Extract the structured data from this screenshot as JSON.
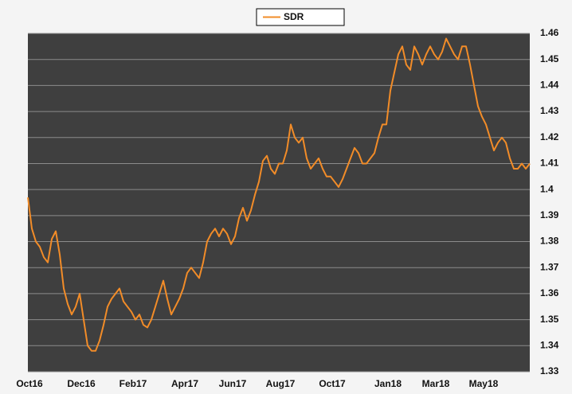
{
  "chart_data": {
    "type": "line",
    "categories": [
      "Oct16",
      null,
      null,
      null,
      null,
      null,
      null,
      null,
      null,
      null,
      null,
      null,
      null,
      "Dec16",
      null,
      null,
      null,
      null,
      null,
      null,
      null,
      null,
      null,
      null,
      null,
      null,
      "Feb17",
      null,
      null,
      null,
      null,
      null,
      null,
      null,
      null,
      null,
      null,
      null,
      null,
      "Apr17",
      null,
      null,
      null,
      null,
      null,
      null,
      null,
      null,
      null,
      null,
      null,
      "Jun17",
      null,
      null,
      null,
      null,
      null,
      null,
      null,
      null,
      null,
      null,
      null,
      "Aug17",
      null,
      null,
      null,
      null,
      null,
      null,
      null,
      null,
      null,
      null,
      null,
      null,
      "Oct17",
      null,
      null,
      null,
      null,
      null,
      null,
      null,
      null,
      null,
      null,
      null,
      null,
      null,
      "Jan18",
      null,
      null,
      null,
      null,
      null,
      null,
      null,
      null,
      null,
      null,
      null,
      "Mar18",
      null,
      null,
      null,
      null,
      null,
      null,
      null,
      null,
      null,
      null,
      null,
      "May18",
      null,
      null,
      null,
      null,
      null,
      null,
      null,
      null,
      null,
      null,
      null,
      null
    ],
    "series": [
      {
        "name": "SDR",
        "color": "#f28c28",
        "values": [
          1.397,
          1.385,
          1.38,
          1.378,
          1.374,
          1.372,
          1.381,
          1.384,
          1.375,
          1.362,
          1.356,
          1.352,
          1.355,
          1.36,
          1.35,
          1.34,
          1.338,
          1.338,
          1.342,
          1.348,
          1.355,
          1.358,
          1.36,
          1.362,
          1.357,
          1.355,
          1.353,
          1.35,
          1.352,
          1.348,
          1.347,
          1.35,
          1.355,
          1.36,
          1.365,
          1.358,
          1.352,
          1.355,
          1.358,
          1.362,
          1.368,
          1.37,
          1.368,
          1.366,
          1.372,
          1.38,
          1.383,
          1.385,
          1.382,
          1.385,
          1.383,
          1.379,
          1.382,
          1.389,
          1.393,
          1.388,
          1.392,
          1.398,
          1.403,
          1.411,
          1.413,
          1.408,
          1.406,
          1.41,
          1.41,
          1.415,
          1.425,
          1.42,
          1.418,
          1.42,
          1.412,
          1.408,
          1.41,
          1.412,
          1.408,
          1.405,
          1.405,
          1.403,
          1.401,
          1.404,
          1.408,
          1.412,
          1.416,
          1.414,
          1.41,
          1.41,
          1.412,
          1.414,
          1.42,
          1.425,
          1.425,
          1.438,
          1.445,
          1.452,
          1.455,
          1.448,
          1.446,
          1.455,
          1.452,
          1.448,
          1.452,
          1.455,
          1.452,
          1.45,
          1.453,
          1.458,
          1.455,
          1.452,
          1.45,
          1.455,
          1.455,
          1.448,
          1.44,
          1.432,
          1.428,
          1.425,
          1.42,
          1.415,
          1.418,
          1.42,
          1.418,
          1.412,
          1.408,
          1.408,
          1.41,
          1.408,
          1.41
        ]
      }
    ],
    "ylim": [
      1.33,
      1.46
    ],
    "yticks": [
      1.33,
      1.34,
      1.35,
      1.36,
      1.37,
      1.38,
      1.39,
      1.4,
      1.41,
      1.42,
      1.43,
      1.44,
      1.45,
      1.46
    ],
    "grid": true,
    "legend": "top"
  }
}
